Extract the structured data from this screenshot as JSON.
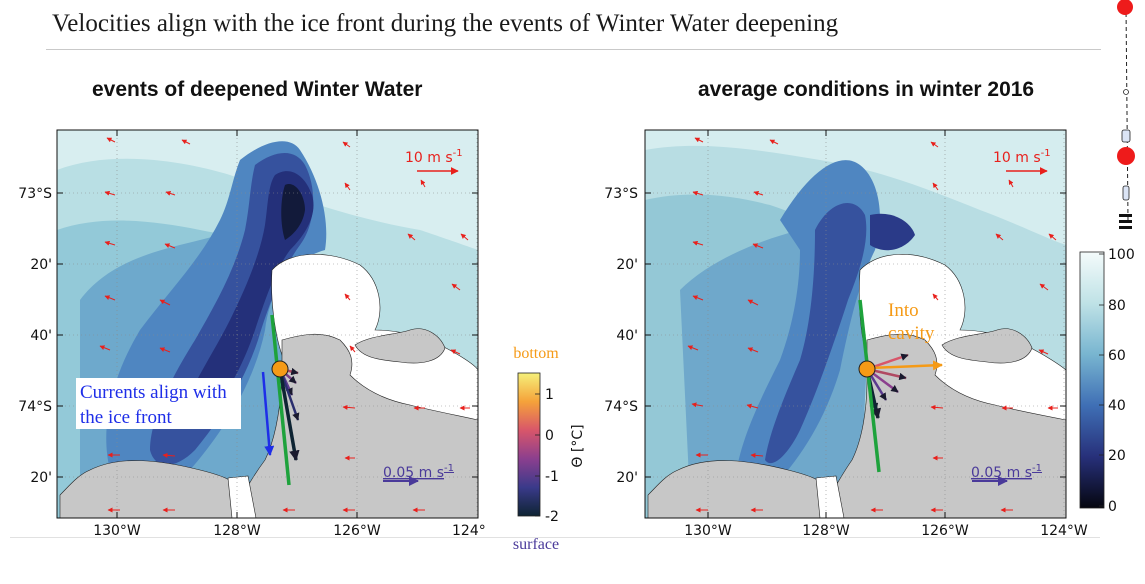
{
  "slide": {
    "title": "Velocities align with the ice front during the events of Winter Water deepening"
  },
  "panels": [
    {
      "heading": "events of deepened Winter Water",
      "lat_labels": [
        "73°S",
        "20'",
        "40'",
        "74°S",
        "20'"
      ],
      "lon_labels": [
        "130°W",
        "128°W",
        "126°W",
        "124°"
      ],
      "wind_scale_label": "10 m s",
      "wind_scale_sup": "-1",
      "current_scale_label": "0.05 m s",
      "current_scale_sup": "-1",
      "annotation_line1": "Currents align with",
      "annotation_line2": "the ice front"
    },
    {
      "heading": "average conditions in winter 2016",
      "lat_labels": [
        "73°S",
        "20'",
        "40'",
        "74°S",
        "20'"
      ],
      "lon_labels": [
        "130°W",
        "128°W",
        "126°W",
        "124°W"
      ],
      "wind_scale_label": "10 m s",
      "wind_scale_sup": "-1",
      "current_scale_label": "0.05 m s",
      "current_scale_sup": "-1",
      "annotation_line1": "Into",
      "annotation_line2": "cavity"
    }
  ],
  "temperature_colorbar": {
    "top_label": "bottom",
    "bottom_label": "surface",
    "axis_label": "Θ [°C]",
    "ticks": [
      "1",
      "0",
      "-1",
      "-2"
    ]
  },
  "ice_colorbar": {
    "ticks": [
      "100",
      "80",
      "60",
      "40",
      "20",
      "0"
    ]
  },
  "colors": {
    "wind_arrow": "#e8201c",
    "current_scale_arrow": "#4a3a9a",
    "blue_arrow": "#1e2ee8",
    "orange_arrow": "#f59a16",
    "ice_front_line": "#1ea23c",
    "land": "#c7c7c7",
    "ice_shelf": "#ffffff"
  }
}
